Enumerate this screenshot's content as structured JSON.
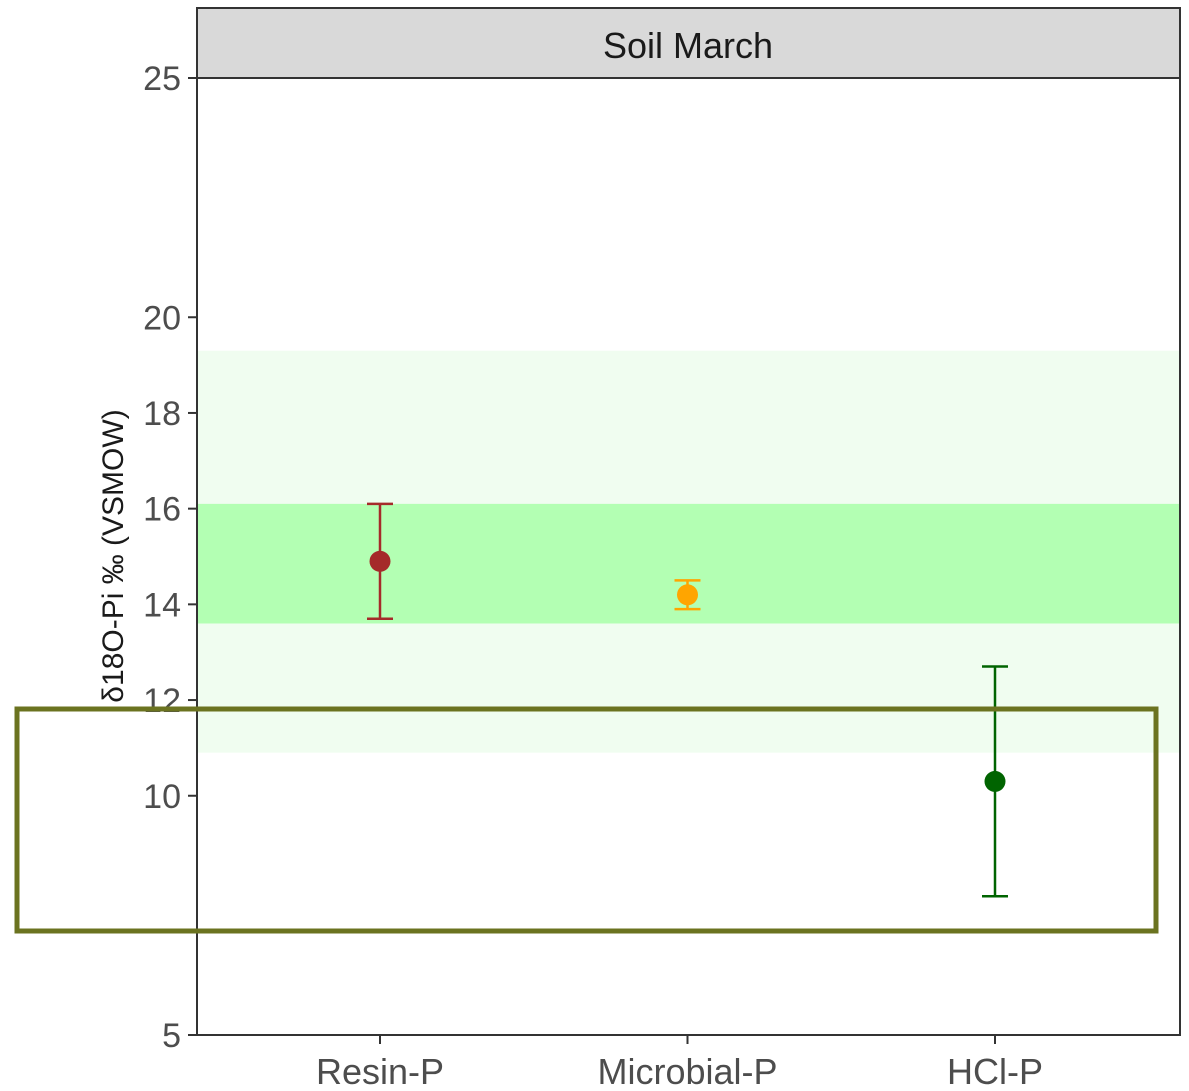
{
  "chart_data": {
    "type": "scatter",
    "title": "",
    "facet_label": "Soil March",
    "xlabel": "",
    "ylabel": "δ18O-Pi ‰ (VSMOW)",
    "categories": [
      "Resin-P",
      "Microbial-P",
      "HCl-P"
    ],
    "ylim": [
      5,
      25
    ],
    "y_ticks": [
      5,
      10,
      12,
      14,
      16,
      18,
      20,
      25
    ],
    "bands": [
      {
        "name": "outer",
        "ymin": 10.9,
        "ymax": 19.3,
        "color": "#f0fdf0"
      },
      {
        "name": "inner",
        "ymin": 13.6,
        "ymax": 16.1,
        "color": "#b3ffb3"
      }
    ],
    "points": [
      {
        "category": "Resin-P",
        "y": 14.9,
        "ymin": 13.7,
        "ymax": 16.1,
        "color": "#a52a2a"
      },
      {
        "category": "Microbial-P",
        "y": 14.2,
        "ymin": 13.9,
        "ymax": 14.5,
        "color": "#ffa500"
      },
      {
        "category": "HCl-P",
        "y": 10.3,
        "ymin": 7.9,
        "ymax": 12.7,
        "color": "#006400"
      }
    ],
    "grid": false,
    "highlight_box_color": "#6b7320"
  }
}
